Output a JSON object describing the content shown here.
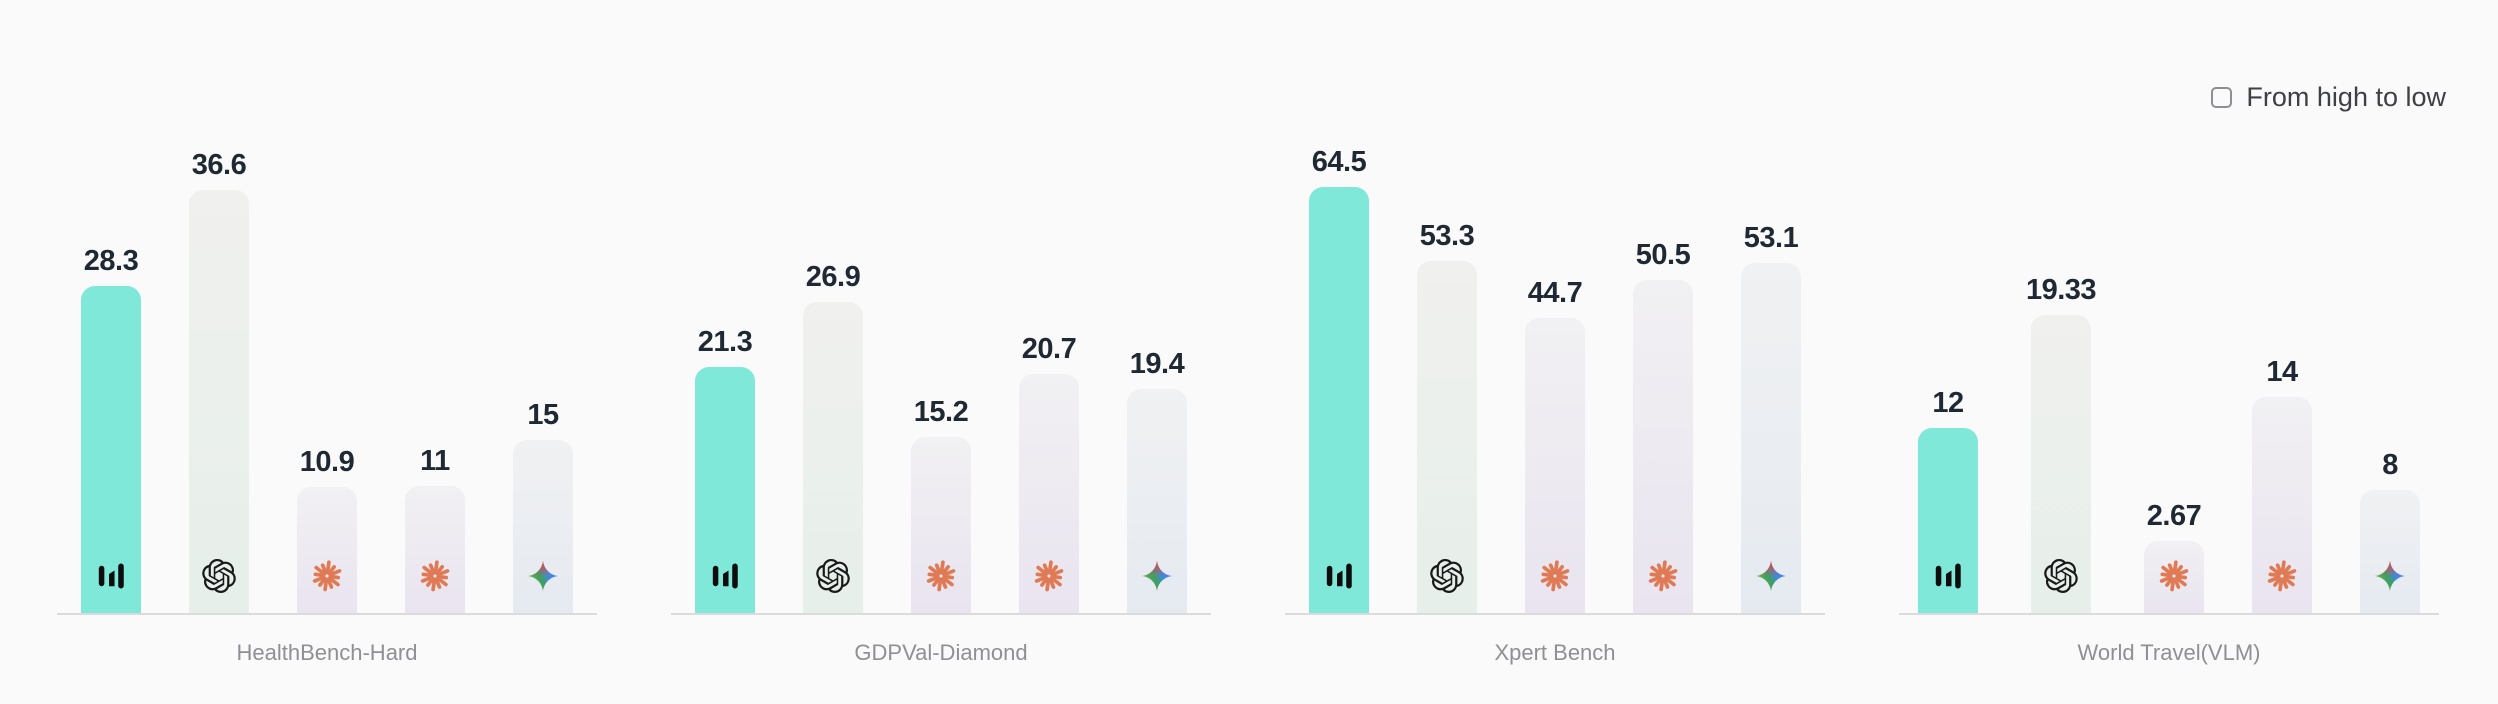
{
  "background": "#FAFAFA",
  "controls": {
    "sort_checkbox": {
      "label": "From high to low",
      "checked": false
    }
  },
  "chart_data": {
    "type": "bar",
    "title": "",
    "grid": false,
    "value_labels": true,
    "legend": "icons-inside-bars",
    "groups": [
      "HealthBench-Hard",
      "GDPVal-Diamond",
      "Xpert Bench",
      "World Travel(VLM)"
    ],
    "group_axis_max": [
      40,
      40,
      70,
      30
    ],
    "series": [
      {
        "name": "highlighted-model",
        "icon": "equalizer-logo-icon",
        "values": [
          28.3,
          21.3,
          64.5,
          12
        ],
        "fill_top": "#7FE8D9",
        "fill_bottom": "#7FE8D9",
        "icon_color": "#0D0D0D"
      },
      {
        "name": "openai-model",
        "icon": "openai-logo-icon",
        "values": [
          36.6,
          26.9,
          53.3,
          19.33
        ],
        "fill_top": "#F0F0EF",
        "fill_bottom": "#E6EFE9",
        "icon_color": "#191919"
      },
      {
        "name": "claude-model-1",
        "icon": "claude-logo-icon",
        "values": [
          10.9,
          15.2,
          44.7,
          2.67
        ],
        "fill_top": "#F1F0F2",
        "fill_bottom": "#E9E4F0",
        "icon_color": "#E07A55"
      },
      {
        "name": "claude-model-2",
        "icon": "claude-logo-icon",
        "values": [
          11,
          20.7,
          50.5,
          14
        ],
        "fill_top": "#F1F0F2",
        "fill_bottom": "#E9E4F0",
        "icon_color": "#E07A55"
      },
      {
        "name": "gemini-model",
        "icon": "gemini-logo-icon",
        "values": [
          15,
          19.4,
          53.1,
          8
        ],
        "fill_top": "#F0F1F2",
        "fill_bottom": "#E5EAF1",
        "icon_color": "gradient"
      }
    ],
    "colors": {
      "highlight_bar": "#7FE8D9",
      "value_text": "#1F2933",
      "group_label_text": "#8F8F94",
      "axis_line": "#DBDBDB",
      "claude_orange": "#E07A55"
    }
  }
}
